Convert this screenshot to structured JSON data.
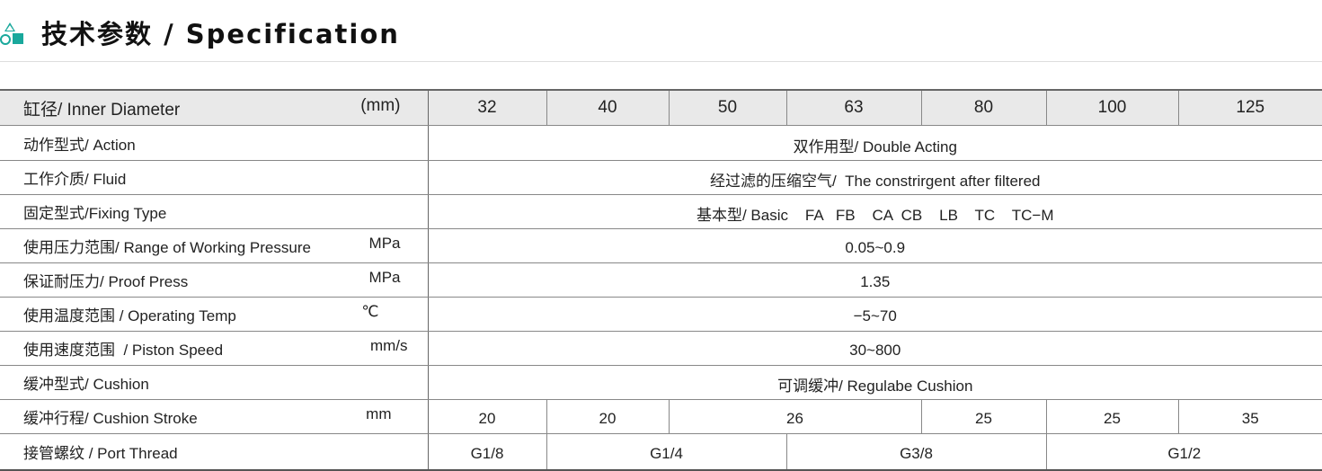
{
  "header": {
    "title": "技术参数 / Specification",
    "icon": "shapes-logo-icon",
    "accent": "#19a89c"
  },
  "table": {
    "bore": {
      "label": "缸径/ Inner Diameter",
      "unit": "(mm)",
      "values": [
        "32",
        "40",
        "50",
        "63",
        "80",
        "100",
        "125"
      ]
    },
    "rows": [
      {
        "label": "动作型式/ Action",
        "unit": "",
        "value": "双作用型/ Double Acting"
      },
      {
        "label": "工作介质/ Fluid",
        "unit": "",
        "value": "经过滤的压缩空气/  The constrirgent after filtered"
      },
      {
        "label": "固定型式/Fixing Type",
        "unit": "",
        "value": "基本型/ Basic    FA   FB    CA  CB    LB    TC    TC−M"
      },
      {
        "label": "使用压力范围/ Range of Working Pressure",
        "unit": "MPa",
        "value": "0.05~0.9"
      },
      {
        "label": "保证耐压力/ Proof Press",
        "unit": "MPa",
        "value": "1.35"
      },
      {
        "label": "使用温度范围 / Operating Temp",
        "unit": "℃",
        "value": "−5~70"
      },
      {
        "label": "使用速度范围  / Piston Speed",
        "unit": "mm/s",
        "value": "30~800"
      },
      {
        "label": "缓冲型式/ Cushion",
        "unit": "",
        "value": "可调缓冲/ Regulabe Cushion"
      }
    ],
    "stroke": {
      "label": "缓冲行程/ Cushion Stroke",
      "unit": "mm",
      "values": [
        "20",
        "20",
        "26",
        "25",
        "25",
        "35"
      ]
    },
    "port": {
      "label": "接管螺纹 / Port Thread",
      "values": [
        "G1/8",
        "G1/4",
        "G3/8",
        "G1/2"
      ]
    }
  }
}
